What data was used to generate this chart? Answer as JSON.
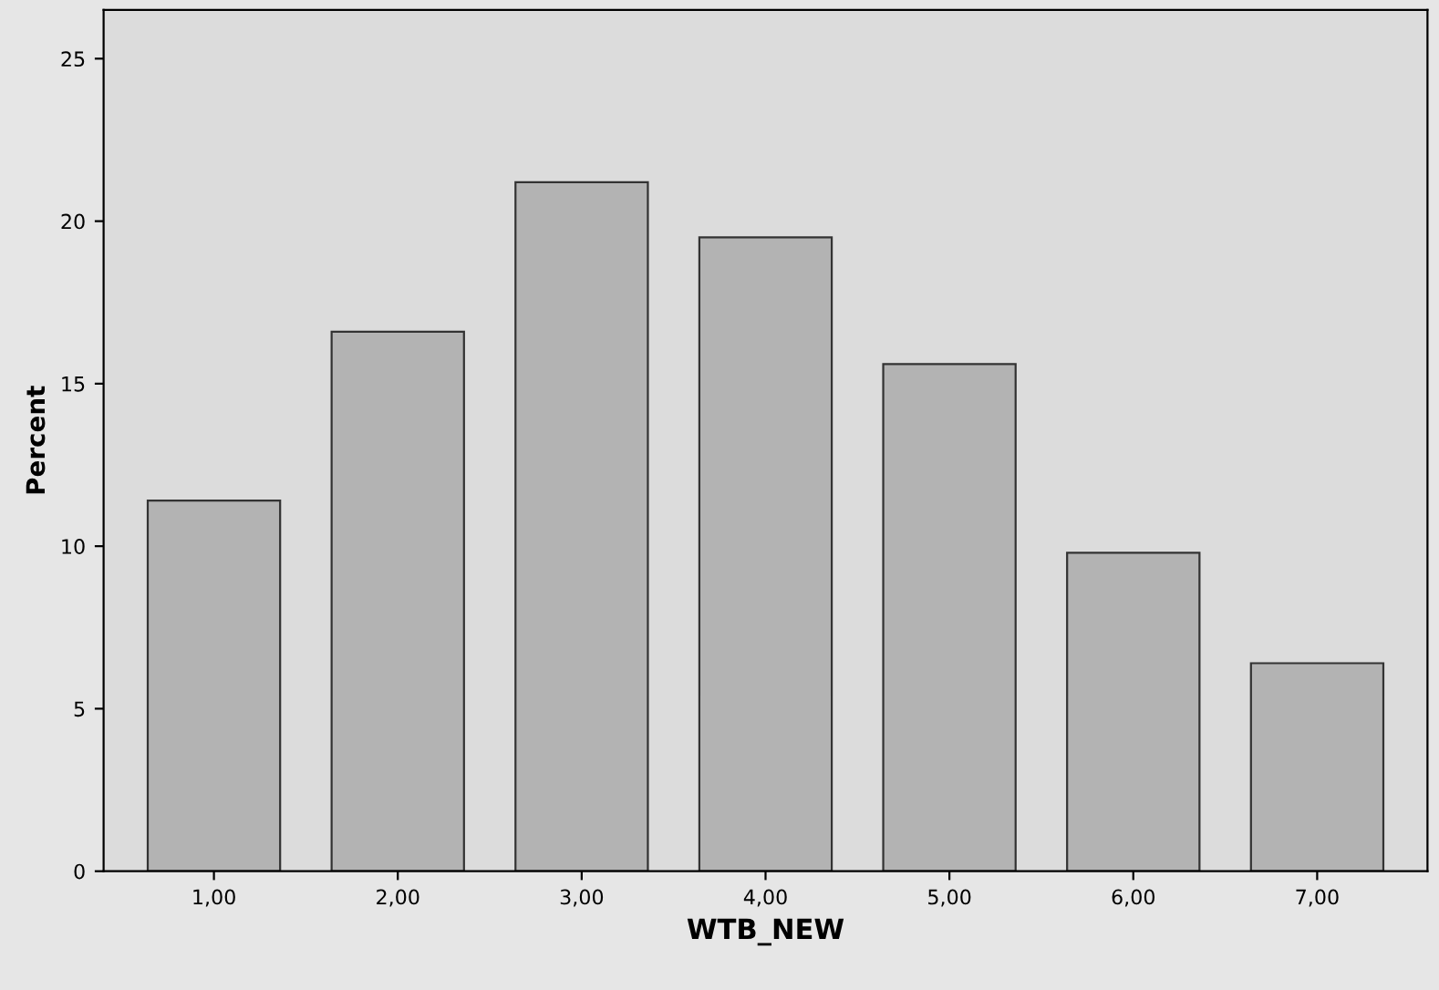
{
  "chart_data": {
    "type": "bar",
    "xlabel": "WTB_NEW",
    "ylabel": "Percent",
    "categories": [
      "1,00",
      "2,00",
      "3,00",
      "4,00",
      "5,00",
      "6,00",
      "7,00"
    ],
    "values": [
      11.4,
      16.6,
      21.2,
      19.5,
      15.6,
      9.8,
      6.4
    ],
    "color": "#b3b3b3",
    "ylim": [
      0,
      26.5
    ],
    "yticks": [
      0,
      5,
      10,
      15,
      20,
      25
    ],
    "grid": false,
    "legend": false
  }
}
